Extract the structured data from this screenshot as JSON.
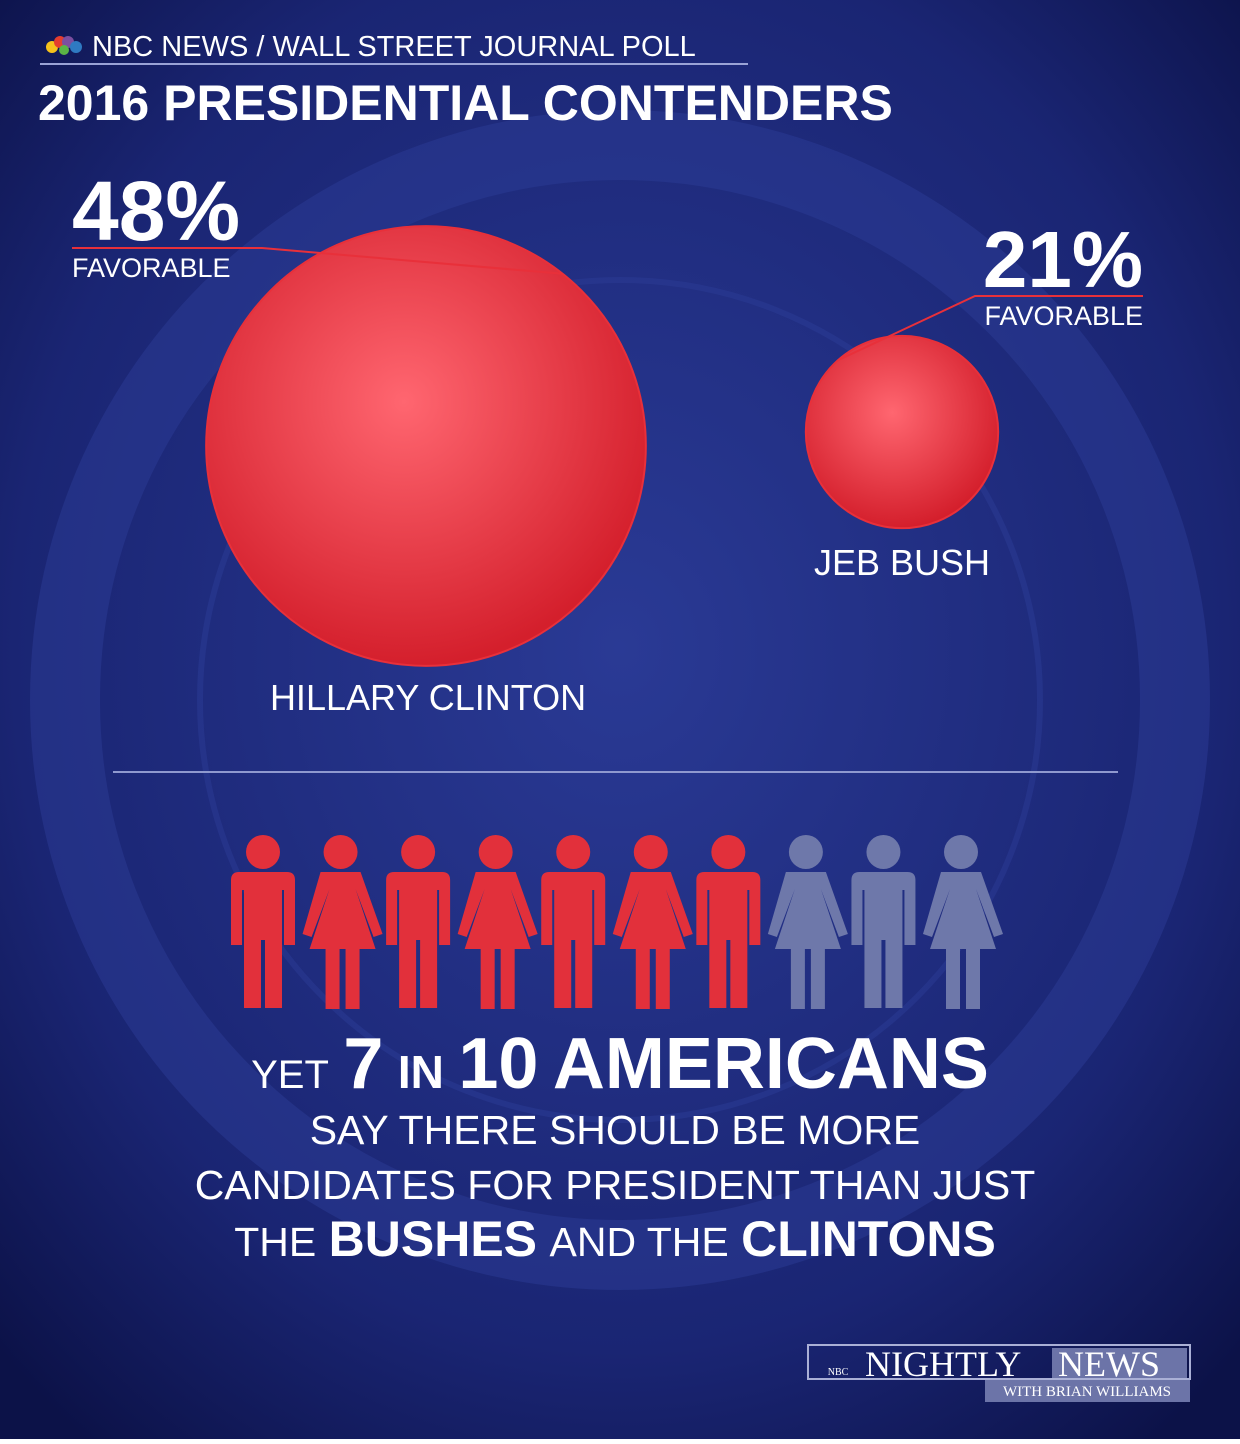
{
  "header": {
    "source": "NBC NEWS / WALL STREET JOURNAL POLL",
    "title": "2016 PRESIDENTIAL CONTENDERS"
  },
  "candidates": [
    {
      "name": "HILLARY CLINTON",
      "favorable": {
        "value": 48,
        "label": "48%"
      },
      "favorable_label": "FAVORABLE",
      "color": "#e8303a"
    },
    {
      "name": "JEB BUSH",
      "favorable": {
        "value": 21,
        "label": "21%"
      },
      "favorable_label": "FAVORABLE",
      "color": "#e8303a"
    }
  ],
  "pictogram": {
    "highlighted": 7,
    "total": 10,
    "highlight_color": "#e2303b",
    "rest_color": "#6e78aa"
  },
  "headline": {
    "lead": "YET",
    "joiner": "IN",
    "subject": "AMERICANS"
  },
  "statement": {
    "line1": "SAY THERE SHOULD BE MORE",
    "line2": "CANDIDATES FOR PRESIDENT THAN JUST",
    "line3": [
      "THE",
      "BUSHES",
      "AND THE",
      "CLINTONS"
    ]
  },
  "footer": {
    "network": "NBC",
    "show_a": "NIGHTLY",
    "show_b": "NEWS",
    "anchor": "WITH BRIAN WILLIAMS"
  }
}
